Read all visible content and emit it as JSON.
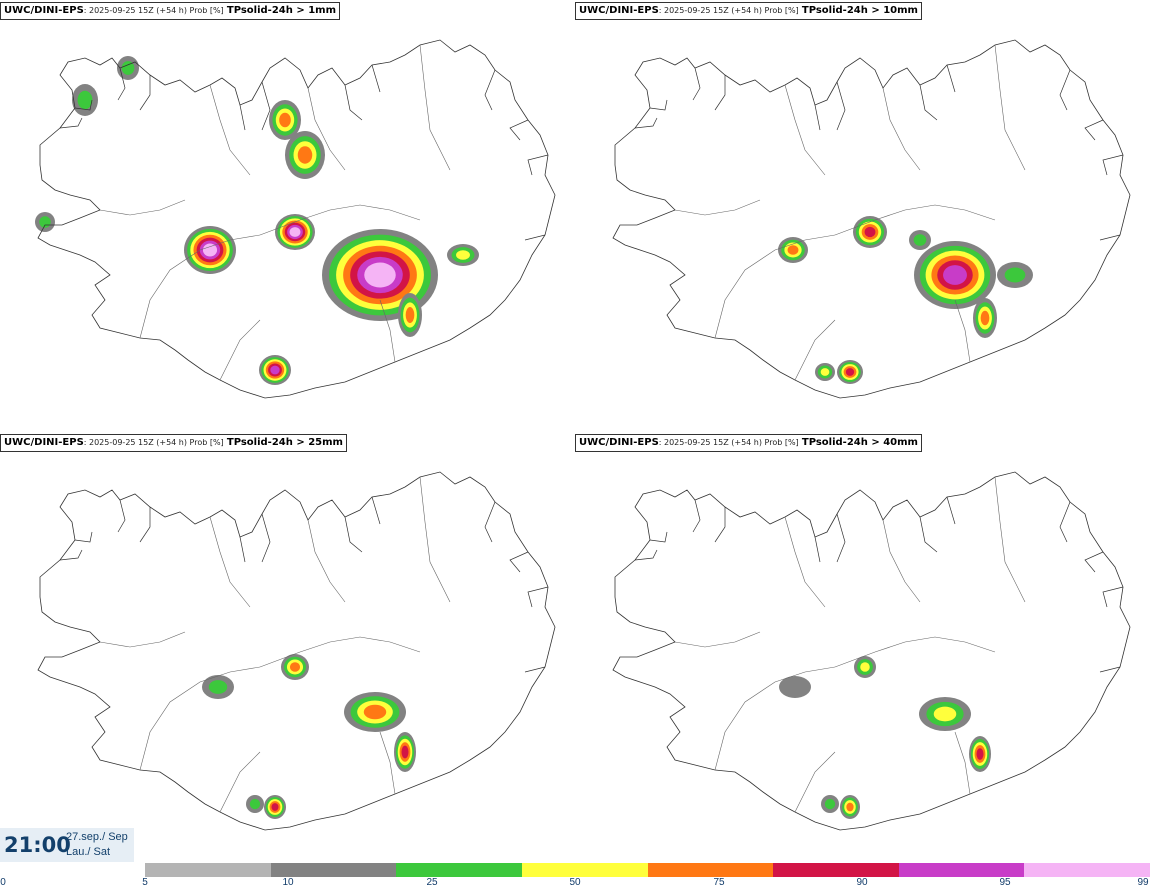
{
  "panels": [
    {
      "model": "UWC/DINI-EPS",
      "meta": ": 2025-09-25 15Z (+54 h) Prob [%]",
      "param": "TPsolid-24h > 1mm"
    },
    {
      "model": "UWC/DINI-EPS",
      "meta": ": 2025-09-25 15Z (+54 h) Prob [%]",
      "param": "TPsolid-24h > 10mm"
    },
    {
      "model": "UWC/DINI-EPS",
      "meta": ": 2025-09-25 15Z (+54 h) Prob [%]",
      "param": "TPsolid-24h > 25mm"
    },
    {
      "model": "UWC/DINI-EPS",
      "meta": ": 2025-09-25 15Z (+54 h) Prob [%]",
      "param": "TPsolid-24h > 40mm"
    }
  ],
  "valid_time": {
    "time": "21:00",
    "date_line1": "27.sep./ Sep",
    "date_line2": "Lau./ Sat"
  },
  "legend": {
    "ticks": [
      "0",
      "5",
      "10",
      "25",
      "50",
      "75",
      "90",
      "95",
      "99"
    ],
    "colors": [
      "#b4b4b4",
      "#828282",
      "#3cc83c",
      "#ffff3c",
      "#ff7814",
      "#d21446",
      "#c83cc8",
      "#f5b4f5"
    ]
  },
  "colors": {
    "coast": "#333333",
    "pink": "#f5b4f5",
    "magenta": "#c83cc8",
    "red": "#d21446",
    "orange": "#ff7814",
    "yellow": "#ffff3c",
    "green": "#3cc83c",
    "darkgrey": "#828282"
  }
}
